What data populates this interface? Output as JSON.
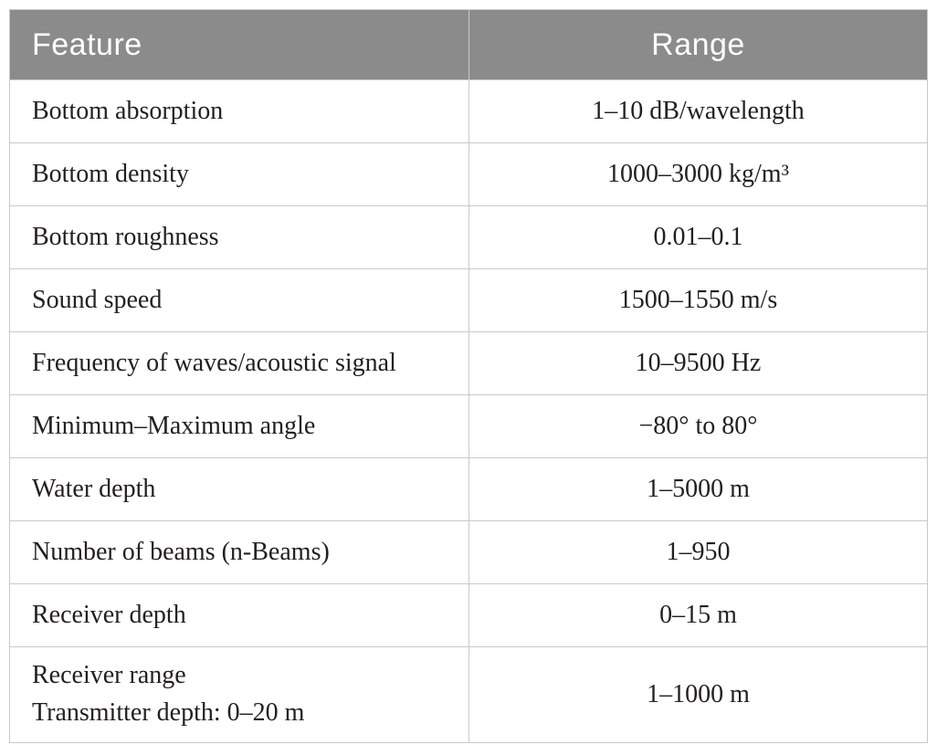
{
  "table": {
    "columns": [
      {
        "label": "Feature"
      },
      {
        "label": "Range"
      }
    ],
    "rows": [
      {
        "feature": "Bottom absorption",
        "range": "1–10 dB/wavelength"
      },
      {
        "feature": "Bottom density",
        "range": "1000–3000 kg/m³"
      },
      {
        "feature": "Bottom roughness",
        "range": "0.01–0.1"
      },
      {
        "feature": "Sound speed",
        "range": "1500–1550 m/s"
      },
      {
        "feature": "Frequency of waves/acoustic signal",
        "range": "10–9500 Hz"
      },
      {
        "feature": "Minimum–Maximum angle",
        "range": "−80° to 80°"
      },
      {
        "feature": "Water depth",
        "range": "1–5000 m"
      },
      {
        "feature": "Number of beams (n-Beams)",
        "range": "1–950"
      },
      {
        "feature": "Receiver depth",
        "range": "0–15 m"
      },
      {
        "feature": "Receiver range\nTransmitter depth: 0–20 m",
        "range": "1–1000 m"
      }
    ],
    "colors": {
      "header_background": "#8b8b8b",
      "header_text": "#ffffff",
      "grid_line": "#c9c9c9",
      "body_text": "#231f20"
    }
  }
}
